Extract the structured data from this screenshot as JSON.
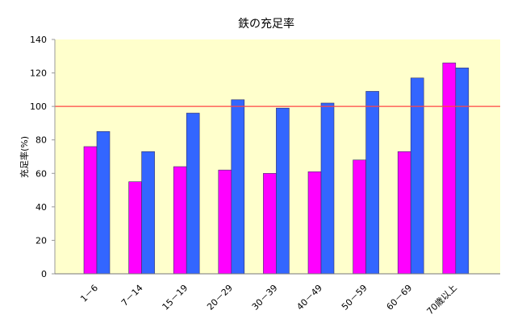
{
  "chart_data": {
    "type": "bar",
    "title": "鉄の充足率",
    "xlabel": "",
    "ylabel": "充足率(%)",
    "ylim": [
      0,
      140
    ],
    "yticks": [
      0,
      20,
      40,
      60,
      80,
      100,
      120,
      140
    ],
    "grid": false,
    "legend": "none",
    "categories": [
      "1－6",
      "7－14",
      "15－19",
      "20－29",
      "30－39",
      "40－49",
      "50－59",
      "60－69",
      "70歳以上"
    ],
    "series": [
      {
        "values": [
          76,
          55,
          64,
          62,
          60,
          61,
          68,
          73,
          126
        ],
        "color": "#ff00ff"
      },
      {
        "values": [
          85,
          73,
          96,
          104,
          99,
          102,
          109,
          117,
          123
        ],
        "color": "#3366ff"
      }
    ],
    "reference_line": {
      "value": 100,
      "color": "#ff4444"
    },
    "plot_background": "#ffffcc"
  }
}
